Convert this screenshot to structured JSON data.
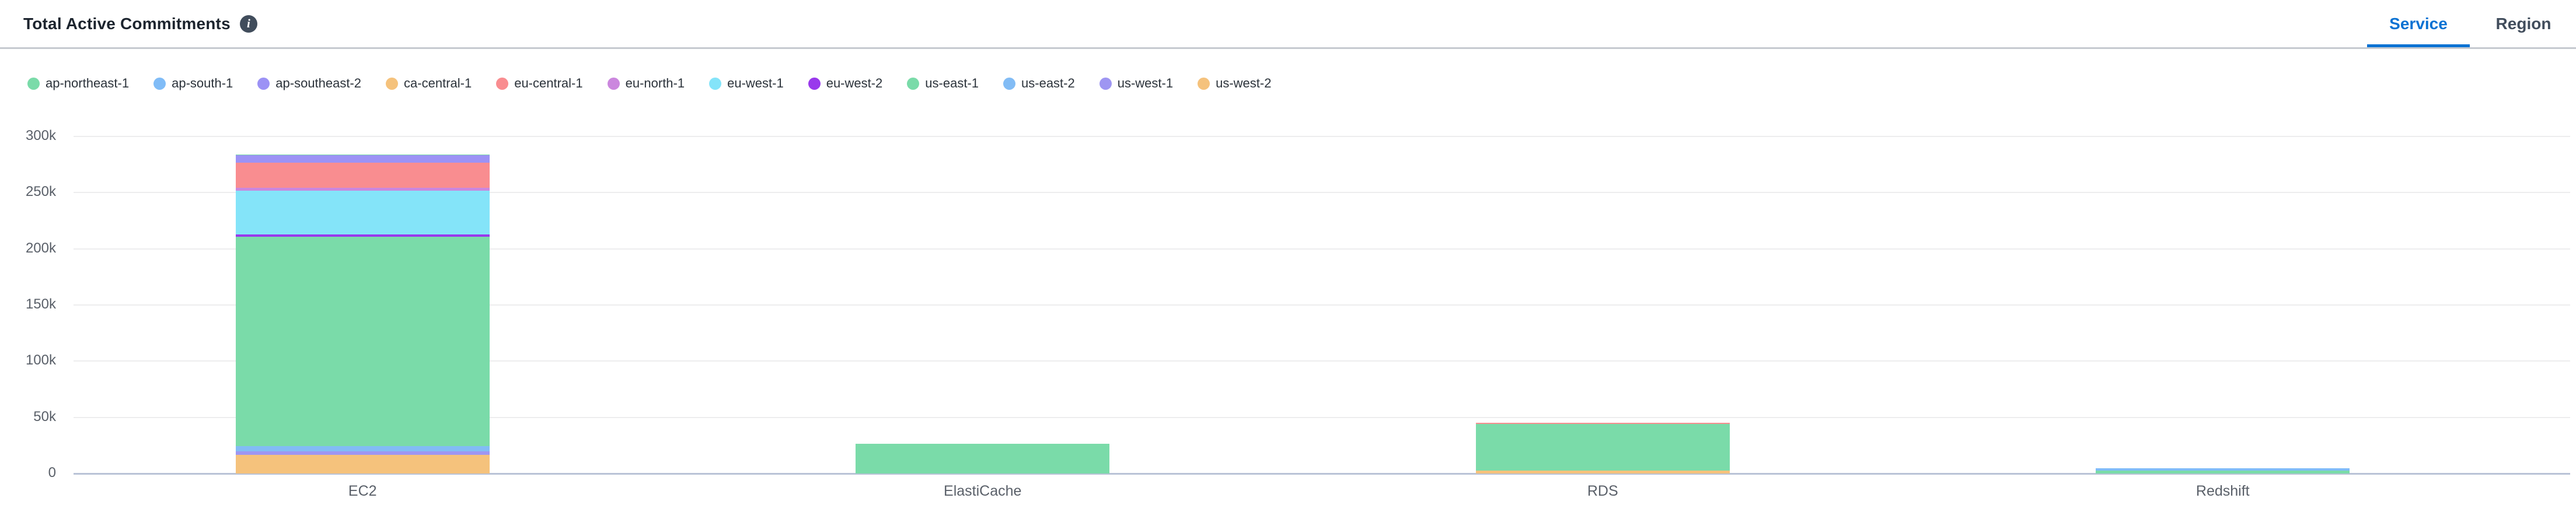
{
  "header": {
    "title": "Total Active Commitments",
    "tabs": [
      {
        "label": "Service",
        "active": true
      },
      {
        "label": "Region",
        "active": false
      }
    ]
  },
  "chart_data": {
    "type": "bar",
    "stacked": true,
    "stack_note": "first series renders at top of each stack (legend order top-to-bottom)",
    "categories": [
      "EC2",
      "ElastiCache",
      "RDS",
      "Redshift"
    ],
    "series": [
      {
        "name": "ap-northeast-1",
        "color": "#7ADBA9",
        "values": [
          900,
          0,
          0,
          0
        ]
      },
      {
        "name": "ap-south-1",
        "color": "#80BCF7",
        "values": [
          0,
          0,
          0,
          2100
        ]
      },
      {
        "name": "ap-southeast-2",
        "color": "#9C92F5",
        "values": [
          6600,
          0,
          0,
          0
        ]
      },
      {
        "name": "ca-central-1",
        "color": "#F5C27C",
        "values": [
          0,
          0,
          0,
          0
        ]
      },
      {
        "name": "eu-central-1",
        "color": "#F98D90",
        "values": [
          22500,
          0,
          1200,
          0
        ]
      },
      {
        "name": "eu-north-1",
        "color": "#CB87DE",
        "values": [
          2400,
          0,
          0,
          0
        ]
      },
      {
        "name": "eu-west-1",
        "color": "#84E4F9",
        "values": [
          39100,
          0,
          0,
          0
        ]
      },
      {
        "name": "eu-west-2",
        "color": "#9939EC",
        "values": [
          2100,
          0,
          0,
          0
        ]
      },
      {
        "name": "us-east-1",
        "color": "#7ADBA9",
        "values": [
          186300,
          26600,
          41300,
          2500
        ]
      },
      {
        "name": "us-east-2",
        "color": "#82BCF5",
        "values": [
          4500,
          0,
          0,
          0
        ]
      },
      {
        "name": "us-west-1",
        "color": "#9E96F2",
        "values": [
          3100,
          0,
          0,
          0
        ]
      },
      {
        "name": "us-west-2",
        "color": "#F5C27C",
        "values": [
          16600,
          0,
          2600,
          0
        ]
      }
    ],
    "ylim": [
      0,
      300000
    ],
    "yticks": [
      {
        "value": 0,
        "label": "0"
      },
      {
        "value": 50000,
        "label": "50k"
      },
      {
        "value": 100000,
        "label": "100k"
      },
      {
        "value": 150000,
        "label": "150k"
      },
      {
        "value": 200000,
        "label": "200k"
      },
      {
        "value": 250000,
        "label": "250k"
      },
      {
        "value": 300000,
        "label": "300k"
      }
    ],
    "grid": "horizontal",
    "legend_position": "top",
    "colors": {
      "accent_tab": "#0972d3",
      "baseline": "#b9c3d6",
      "gridline": "#ededee"
    }
  }
}
